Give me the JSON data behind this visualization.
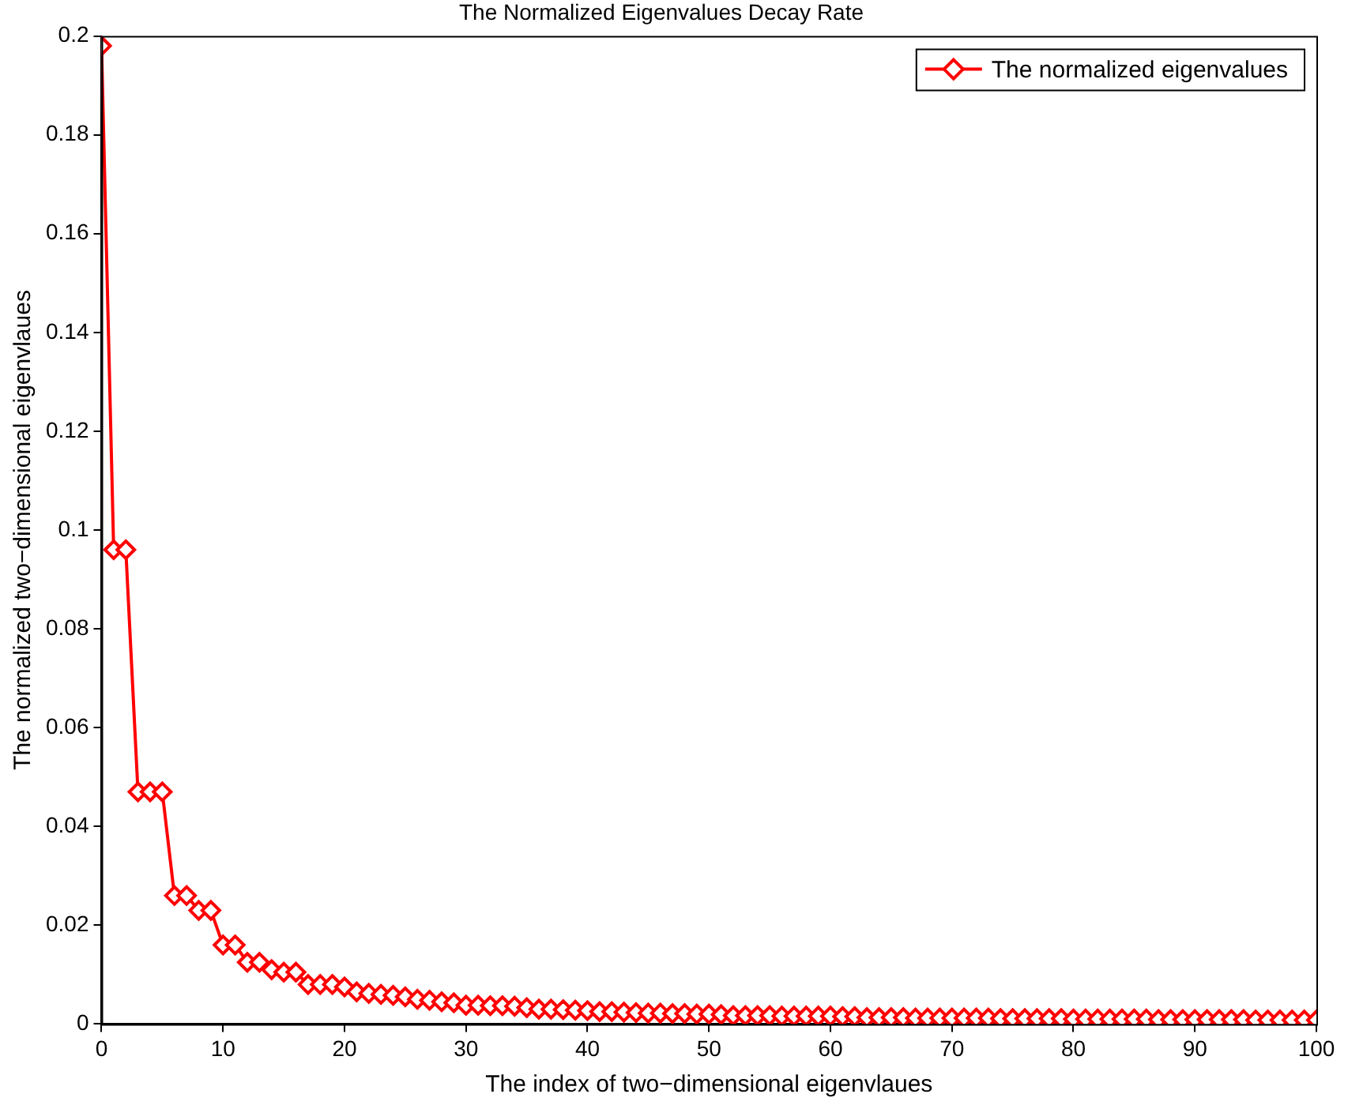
{
  "chart_data": {
    "type": "line",
    "title": "The Normalized Eigenvalues Decay Rate",
    "xlabel": "The index of two−dimensional eigenvlaues",
    "ylabel": "The normalized two−dimensional eigenvlaues",
    "x": [
      0,
      1,
      2,
      3,
      4,
      5,
      6,
      7,
      8,
      9,
      10,
      11,
      12,
      13,
      14,
      15,
      16,
      17,
      18,
      19,
      20,
      21,
      22,
      23,
      24,
      25,
      26,
      27,
      28,
      29,
      30,
      31,
      32,
      33,
      34,
      35,
      36,
      37,
      38,
      39,
      40,
      41,
      42,
      43,
      44,
      45,
      46,
      47,
      48,
      49,
      50,
      51,
      52,
      53,
      54,
      55,
      56,
      57,
      58,
      59,
      60,
      61,
      62,
      63,
      64,
      65,
      66,
      67,
      68,
      69,
      70,
      71,
      72,
      73,
      74,
      75,
      76,
      77,
      78,
      79,
      80,
      81,
      82,
      83,
      84,
      85,
      86,
      87,
      88,
      89,
      90,
      91,
      92,
      93,
      94,
      95,
      96,
      97,
      98,
      99,
      100
    ],
    "series": [
      {
        "name": "The normalized eigenvalues",
        "color": "#ff0000",
        "values": [
          0.198,
          0.096,
          0.096,
          0.047,
          0.047,
          0.047,
          0.026,
          0.026,
          0.023,
          0.023,
          0.016,
          0.016,
          0.0125,
          0.0125,
          0.011,
          0.0105,
          0.0105,
          0.008,
          0.008,
          0.008,
          0.0075,
          0.0065,
          0.0062,
          0.006,
          0.0058,
          0.0055,
          0.005,
          0.0048,
          0.0045,
          0.0043,
          0.0038,
          0.0038,
          0.0037,
          0.0037,
          0.0036,
          0.0033,
          0.003,
          0.003,
          0.0029,
          0.0028,
          0.0027,
          0.0025,
          0.0025,
          0.0024,
          0.0023,
          0.0022,
          0.0022,
          0.0021,
          0.0021,
          0.002,
          0.002,
          0.0019,
          0.0017,
          0.0017,
          0.0017,
          0.0017,
          0.0016,
          0.0016,
          0.0016,
          0.0016,
          0.0016,
          0.0015,
          0.0015,
          0.0013,
          0.0013,
          0.0013,
          0.0013,
          0.0012,
          0.0012,
          0.0012,
          0.0012,
          0.0012,
          0.0012,
          0.0012,
          0.0011,
          0.0011,
          0.0011,
          0.0011,
          0.0011,
          0.0011,
          0.001,
          0.001,
          0.001,
          0.001,
          0.001,
          0.001,
          0.001,
          0.0009,
          0.0009,
          0.0009,
          0.0009,
          0.0009,
          0.0009,
          0.0009,
          0.0009,
          0.0008,
          0.0008,
          0.0008,
          0.0008,
          0.0008,
          0.0008
        ]
      }
    ],
    "xlim": [
      0,
      100
    ],
    "xticks": [
      0,
      10,
      20,
      30,
      40,
      50,
      60,
      70,
      80,
      90,
      100
    ],
    "ylim": [
      0,
      0.2
    ],
    "yticks": [
      0,
      0.02,
      0.04,
      0.06,
      0.08,
      0.1,
      0.12,
      0.14,
      0.16,
      0.18,
      0.2
    ],
    "grid": false,
    "legend": "top right",
    "marker": "diamond",
    "line_style": "solid"
  }
}
